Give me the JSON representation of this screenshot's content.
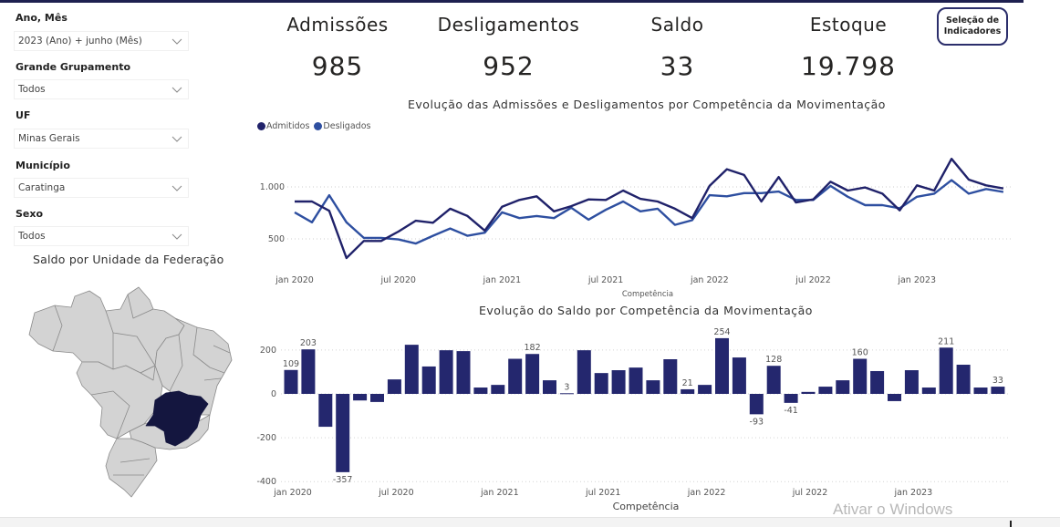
{
  "slicers": [
    {
      "label": "Ano, Mês",
      "value": "2023 (Ano) + junho (Mês)"
    },
    {
      "label": "Grande Grupamento",
      "value": "Todos"
    },
    {
      "label": "UF",
      "value": "Minas Gerais"
    },
    {
      "label": "Município",
      "value": "Caratinga"
    },
    {
      "label": "Sexo",
      "value": "Todos"
    }
  ],
  "kpis": [
    {
      "label": "Admissões",
      "value": "985"
    },
    {
      "label": "Desligamentos",
      "value": "952"
    },
    {
      "label": "Saldo",
      "value": "33"
    },
    {
      "label": "Estoque",
      "value": "19.798"
    }
  ],
  "selection_button": {
    "line1": "Seleção de",
    "line2": "Indicadores"
  },
  "map": {
    "title": "Saldo por Unidade da Federação",
    "highlighted_state": "Minas Gerais",
    "highlight_color": "#14163f",
    "base_color": "#d3d3d3"
  },
  "watermark": "Ativar o Windows",
  "chart_data": [
    {
      "type": "line",
      "title": "Evolução das Admissões e Desligamentos por Competência da Movimentação",
      "xlabel": "Competência",
      "ylabel": "",
      "ylim": [
        250,
        1350
      ],
      "yticks": [
        500,
        1000
      ],
      "ytick_labels": [
        "500",
        "1.000"
      ],
      "grid": true,
      "legend": "top-left",
      "x_tick_labels": [
        "jan 2020",
        "jul 2020",
        "jan 2021",
        "jul 2021",
        "jan 2022",
        "jul 2022",
        "jan 2023"
      ],
      "x_tick_indices": [
        0,
        6,
        12,
        18,
        24,
        30,
        36
      ],
      "x_start": "jan 2020",
      "x_end": "jun 2023",
      "series": [
        {
          "name": "Admitidos",
          "color": "#20226a",
          "values": [
            860,
            860,
            770,
            316,
            480,
            480,
            570,
            675,
            655,
            790,
            720,
            580,
            810,
            875,
            910,
            765,
            815,
            880,
            875,
            965,
            885,
            860,
            790,
            700,
            1010,
            1170,
            1115,
            860,
            1095,
            850,
            880,
            1050,
            965,
            995,
            935,
            775,
            1015,
            965,
            1270,
            1070,
            1015,
            985
          ]
        },
        {
          "name": "Desligados",
          "color": "#2e4fa0",
          "values": [
            755,
            660,
            920,
            660,
            510,
            510,
            495,
            455,
            530,
            600,
            530,
            560,
            755,
            700,
            720,
            700,
            800,
            685,
            780,
            860,
            765,
            790,
            635,
            680,
            920,
            910,
            940,
            940,
            955,
            875,
            875,
            1010,
            905,
            825,
            825,
            795,
            905,
            935,
            1065,
            935,
            980,
            952
          ]
        }
      ]
    },
    {
      "type": "bar",
      "title": "Evolução do Saldo por Competência da Movimentação",
      "xlabel": "Competência",
      "ylabel": "",
      "ylim": [
        -400,
        270
      ],
      "yticks": [
        -400,
        -200,
        0,
        200
      ],
      "ytick_labels": [
        "-400",
        "-200",
        "0",
        "200"
      ],
      "grid": true,
      "bar_color": "#24276e",
      "x_tick_labels": [
        "jan 2020",
        "jul 2020",
        "jan 2021",
        "jul 2021",
        "jan 2022",
        "jul 2022",
        "jan 2023"
      ],
      "x_tick_indices": [
        0,
        6,
        12,
        18,
        24,
        30,
        36
      ],
      "values": [
        109,
        203,
        -150,
        -357,
        -30,
        -37,
        66,
        224,
        125,
        199,
        195,
        29,
        41,
        160,
        182,
        62,
        3,
        199,
        95,
        108,
        120,
        62,
        158,
        21,
        41,
        254,
        166,
        -93,
        128,
        -41,
        9,
        33,
        62,
        160,
        104,
        -33,
        108,
        29,
        211,
        133,
        29,
        33
      ],
      "labeled_indices": [
        0,
        1,
        3,
        14,
        16,
        23,
        25,
        27,
        28,
        29,
        33,
        38,
        41
      ]
    }
  ]
}
